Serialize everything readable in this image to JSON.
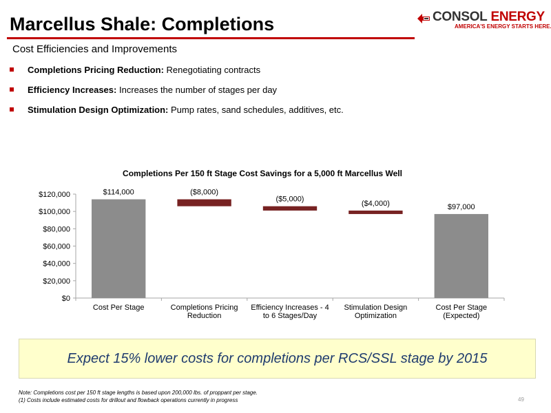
{
  "header": {
    "title": "Marcellus Shale: Completions",
    "subtitle": "Cost Efficiencies and Improvements",
    "logo_word1": "CONSOL",
    "logo_word2": "ENERGY",
    "logo_tagline": "AMERICA'S ENERGY STARTS HERE.",
    "logo_icon": "consol-flame-mark-icon",
    "accent_color": "#c00000"
  },
  "bullets": [
    {
      "bold": "Completions Pricing Reduction:",
      "text": " Renegotiating contracts"
    },
    {
      "bold": "Efficiency Increases:",
      "text": " Increases the number of stages per day"
    },
    {
      "bold": "Stimulation Design Optimization:",
      "text": " Pump rates, sand schedules, additives, etc."
    }
  ],
  "chart_data": {
    "type": "bar",
    "subtype": "waterfall",
    "title": "Completions Per 150 ft Stage Cost Savings for a 5,000 ft Marcellus Well",
    "xlabel": "",
    "ylabel": "",
    "ylim": [
      0,
      120000
    ],
    "yticks": [
      0,
      20000,
      40000,
      60000,
      80000,
      100000,
      120000
    ],
    "ytick_labels": [
      "$0",
      "$20,000",
      "$40,000",
      "$60,000",
      "$80,000",
      "$100,000",
      "$120,000"
    ],
    "grid": false,
    "legend": "none",
    "categories": [
      [
        "Cost Per Stage"
      ],
      [
        "Completions Pricing",
        "Reduction"
      ],
      [
        "Efficiency Increases - 4",
        "to 6 Stages/Day"
      ],
      [
        "Stimulation Design",
        "Optimization"
      ],
      [
        "Cost Per Stage",
        "(Expected)"
      ]
    ],
    "bars": [
      {
        "kind": "total",
        "value": 114000,
        "label": "$114,000"
      },
      {
        "kind": "delta",
        "value": -8000,
        "label": "($8,000)"
      },
      {
        "kind": "delta",
        "value": -5000,
        "label": "($5,000)"
      },
      {
        "kind": "delta",
        "value": -4000,
        "label": "($4,000)"
      },
      {
        "kind": "total",
        "value": 97000,
        "label": "$97,000"
      }
    ],
    "colors": {
      "total": "#8c8c8c",
      "delta": "#772222",
      "axis": "#a6a6a6"
    }
  },
  "callout": {
    "text": "Expect 15% lower costs for completions per RCS/SSL stage by 2015"
  },
  "footnotes": [
    "Note:  Completions cost per 150 ft stage lengths is based upon 200,000 lbs. of proppant per stage.",
    "(1)  Costs include estimated costs for drillout and flowback operations currently in progress"
  ],
  "page_number": "49"
}
